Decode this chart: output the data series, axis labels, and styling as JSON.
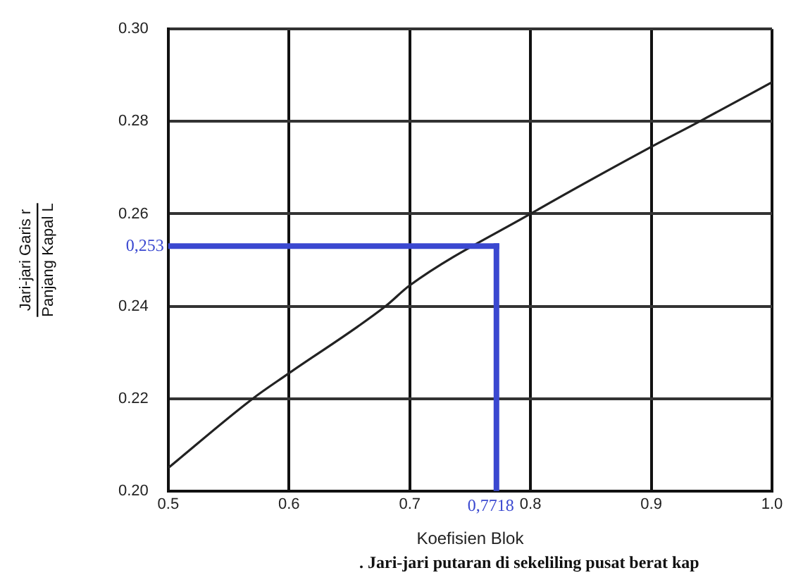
{
  "chart_data": {
    "type": "line",
    "xlabel": "Koefisien Blok",
    "ylabel": "Jari-jari Garis r\nPanjang Kapal L",
    "x": [
      0.5,
      0.57,
      0.6,
      0.68,
      0.7,
      0.8,
      0.9,
      0.94,
      1.0
    ],
    "series": [
      {
        "color": "#222222",
        "values": [
          0.205,
          0.22,
          0.2255,
          0.24,
          0.2445,
          0.26,
          0.2745,
          0.28,
          0.2885
        ]
      }
    ],
    "xlim": [
      0.5,
      1.0
    ],
    "xticks": [
      0.5,
      0.6,
      0.7,
      0.8,
      0.9,
      {
        "value": 1.0,
        "label": "1.0"
      }
    ],
    "ylim": [
      0.2,
      0.3
    ],
    "yticks": [
      {
        "value": 0.2,
        "label": "0.20"
      },
      {
        "value": 0.22,
        "label": "0.22"
      },
      {
        "value": 0.24,
        "label": "0.24"
      },
      {
        "value": 0.26,
        "label": "0.26"
      },
      {
        "value": 0.28,
        "label": "0.28"
      },
      {
        "value": 0.3,
        "label": "0.30"
      }
    ],
    "grid": true,
    "marker": "none",
    "line_style": "solid",
    "legend": false,
    "ref_lines": [
      {
        "axis": "x",
        "value": 0.7718,
        "label": "0,7718",
        "color": "#3a48d0"
      },
      {
        "axis": "y",
        "value": 0.253,
        "label": "0,253",
        "color": "#3a48d0"
      }
    ],
    "annotations": [
      ". Jari-jari putaran di sekeliling pusat berat kap"
    ]
  }
}
